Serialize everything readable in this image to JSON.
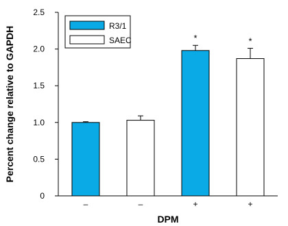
{
  "chart_data": {
    "type": "bar",
    "title": "",
    "xlabel": "DPM",
    "ylabel": "Percent change relative to GAPDH",
    "ylim": [
      0,
      2.5
    ],
    "yticks": [
      "0",
      "0.5",
      "1.0",
      "1.5",
      "2.0",
      "2.5"
    ],
    "categories": [
      "–",
      "–",
      "+",
      "+"
    ],
    "series": [
      {
        "name": "R3/1",
        "color": "#0aaae6"
      },
      {
        "name": "SAEC",
        "color": "#ffffff"
      }
    ],
    "bars": [
      {
        "series": "R3/1",
        "category": "–",
        "value": 1.0,
        "error": 0.01,
        "annotation": ""
      },
      {
        "series": "SAEC",
        "category": "–",
        "value": 1.03,
        "error": 0.06,
        "annotation": ""
      },
      {
        "series": "R3/1",
        "category": "+",
        "value": 1.98,
        "error": 0.07,
        "annotation": "*"
      },
      {
        "series": "SAEC",
        "category": "+",
        "value": 1.87,
        "error": 0.14,
        "annotation": "*"
      }
    ],
    "legend_position": "top-left",
    "grid": false
  }
}
